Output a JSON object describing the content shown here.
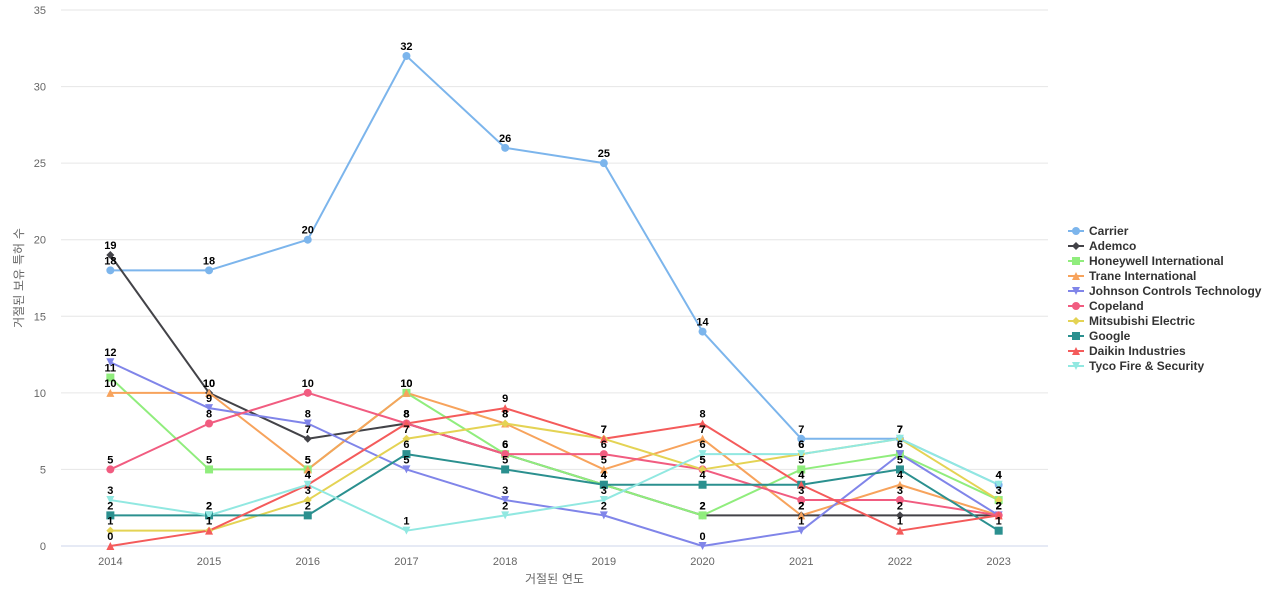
{
  "chart_data": {
    "type": "line",
    "title": "",
    "xlabel": "거절된 연도",
    "ylabel": "거절된 보유 특허 수",
    "x": [
      2014,
      2015,
      2016,
      2017,
      2018,
      2019,
      2020,
      2021,
      2022,
      2023
    ],
    "ylim": [
      0,
      35
    ],
    "yticks": [
      0,
      5,
      10,
      15,
      20,
      25,
      30,
      35
    ],
    "grid": true,
    "legend_position": "right",
    "series": [
      {
        "name": "Carrier",
        "color": "#7cb5ec",
        "marker": "circle",
        "values": [
          18,
          18,
          20,
          32,
          26,
          25,
          14,
          7,
          7,
          4
        ]
      },
      {
        "name": "Ademco",
        "color": "#434348",
        "marker": "diamond",
        "values": [
          19,
          10,
          7,
          8,
          6,
          4,
          2,
          2,
          2,
          2
        ]
      },
      {
        "name": "Honeywell International",
        "color": "#90ed7d",
        "marker": "square",
        "values": [
          11,
          5,
          5,
          10,
          6,
          4,
          2,
          5,
          6,
          3
        ]
      },
      {
        "name": "Trane International",
        "color": "#f7a35c",
        "marker": "triangle",
        "values": [
          10,
          10,
          5,
          10,
          8,
          5,
          7,
          2,
          4,
          2
        ]
      },
      {
        "name": "Johnson Controls Technology",
        "color": "#8085e9",
        "marker": "triangle-down",
        "values": [
          12,
          9,
          8,
          5,
          3,
          2,
          0,
          1,
          6,
          2
        ]
      },
      {
        "name": "Copeland",
        "color": "#f15c80",
        "marker": "circle",
        "values": [
          5,
          8,
          10,
          8,
          6,
          6,
          5,
          3,
          3,
          2
        ]
      },
      {
        "name": "Mitsubishi Electric",
        "color": "#e4d354",
        "marker": "diamond",
        "values": [
          1,
          1,
          3,
          7,
          8,
          7,
          5,
          6,
          7,
          3
        ]
      },
      {
        "name": "Google",
        "color": "#2b908f",
        "marker": "square",
        "values": [
          2,
          2,
          2,
          6,
          5,
          4,
          4,
          4,
          5,
          1
        ]
      },
      {
        "name": "Daikin Industries",
        "color": "#f45b5b",
        "marker": "triangle",
        "values": [
          0,
          1,
          4,
          8,
          9,
          7,
          8,
          4,
          1,
          2
        ]
      },
      {
        "name": "Tyco Fire & Security",
        "color": "#91e8e1",
        "marker": "triangle-down",
        "values": [
          3,
          2,
          4,
          1,
          2,
          3,
          6,
          6,
          7,
          4
        ]
      }
    ]
  }
}
